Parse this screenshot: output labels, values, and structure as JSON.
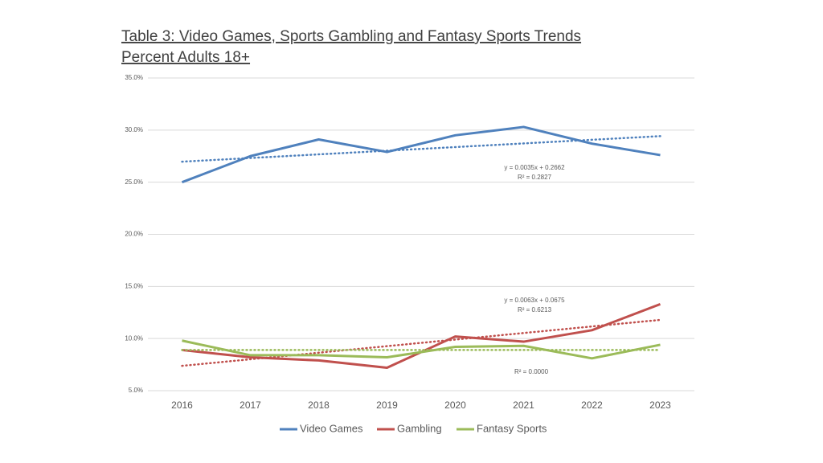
{
  "chart_data": {
    "type": "line",
    "title": "Table 3: Video Games, Sports Gambling and Fantasy Sports Trends",
    "subtitle": "Percent Adults 18+",
    "categories": [
      "2016",
      "2017",
      "2018",
      "2019",
      "2020",
      "2021",
      "2022",
      "2023"
    ],
    "series": [
      {
        "name": "Video Games",
        "color": "#4f81bd",
        "values": [
          25.0,
          27.5,
          29.1,
          27.9,
          29.5,
          30.3,
          28.7,
          27.6
        ],
        "trend": [
          26.97,
          29.42
        ]
      },
      {
        "name": "Gambling",
        "color": "#c0504d",
        "values": [
          8.9,
          8.2,
          7.9,
          7.2,
          10.2,
          9.7,
          10.8,
          13.3
        ],
        "trend": [
          7.38,
          11.79
        ]
      },
      {
        "name": "Fantasy Sports",
        "color": "#9bbb59",
        "values": [
          9.8,
          8.4,
          8.4,
          8.2,
          9.2,
          9.3,
          8.1,
          9.4
        ],
        "trend": [
          8.9,
          8.9
        ]
      }
    ],
    "annotations": [
      "y = 0.0035x + 0.2662",
      "R² = 0.2827",
      "y = 0.0063x + 0.0675",
      "R² = 0.6213",
      "R² = 0.0000"
    ],
    "ylim": [
      5,
      35
    ],
    "yticks": [
      {
        "value": 5,
        "label": "5.0%"
      },
      {
        "value": 10,
        "label": "10.0%"
      },
      {
        "value": 15,
        "label": "15.0%"
      },
      {
        "value": 20,
        "label": "20.0%"
      },
      {
        "value": 25,
        "label": "25.0%"
      },
      {
        "value": 30,
        "label": "30.0%"
      },
      {
        "value": 35,
        "label": "35.0%"
      }
    ],
    "grid": true,
    "legend": "bottom"
  }
}
